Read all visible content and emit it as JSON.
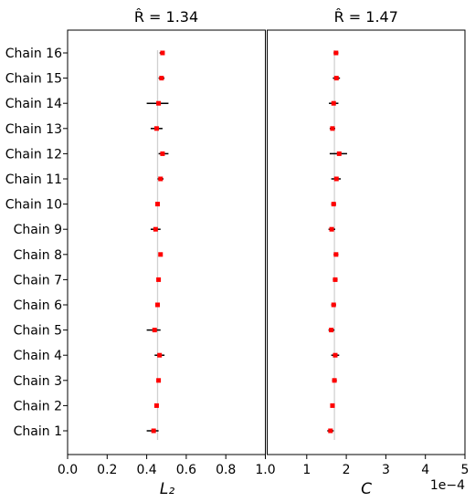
{
  "chart_data": [
    {
      "type": "forest",
      "title": "R̂ = 1.34",
      "xlabel": "L₂",
      "xlim": [
        0.0,
        1.0
      ],
      "xticks": [
        "0.0",
        "0.2",
        "0.4",
        "0.6",
        "0.8",
        "1.0"
      ],
      "tick_values": [
        0.0,
        0.2,
        0.4,
        0.6,
        0.8,
        1.0
      ],
      "categories": [
        "Chain 1",
        "Chain 2",
        "Chain 3",
        "Chain 4",
        "Chain 5",
        "Chain 6",
        "Chain 7",
        "Chain 8",
        "Chain 9",
        "Chain 10",
        "Chain 11",
        "Chain 12",
        "Chain 13",
        "Chain 14",
        "Chain 15",
        "Chain 16"
      ],
      "center": [
        0.435,
        0.45,
        0.46,
        0.465,
        0.44,
        0.455,
        0.46,
        0.47,
        0.445,
        0.455,
        0.47,
        0.48,
        0.45,
        0.46,
        0.475,
        0.48
      ],
      "interval": [
        [
          0.4,
          0.46
        ],
        [
          0.44,
          0.46
        ],
        [
          0.45,
          0.47
        ],
        [
          0.44,
          0.49
        ],
        [
          0.4,
          0.47
        ],
        [
          0.445,
          0.465
        ],
        [
          0.45,
          0.47
        ],
        [
          0.46,
          0.48
        ],
        [
          0.42,
          0.47
        ],
        [
          0.445,
          0.465
        ],
        [
          0.455,
          0.485
        ],
        [
          0.46,
          0.51
        ],
        [
          0.42,
          0.48
        ],
        [
          0.4,
          0.51
        ],
        [
          0.46,
          0.49
        ],
        [
          0.465,
          0.49
        ]
      ],
      "reference_line": 0.455,
      "marker_color": "#ff0000",
      "interval_color": "#000000",
      "reference_color": "#d0d0d0"
    },
    {
      "type": "forest",
      "title": "R̂ = 1.47",
      "xlabel": "C",
      "xlim": [
        0,
        5
      ],
      "xticks": [
        "1",
        "2",
        "3",
        "4",
        "5"
      ],
      "tick_values": [
        1,
        2,
        3,
        4,
        5
      ],
      "scale_note": "1e−4",
      "categories": [
        "Chain 1",
        "Chain 2",
        "Chain 3",
        "Chain 4",
        "Chain 5",
        "Chain 6",
        "Chain 7",
        "Chain 8",
        "Chain 9",
        "Chain 10",
        "Chain 11",
        "Chain 12",
        "Chain 13",
        "Chain 14",
        "Chain 15",
        "Chain 16"
      ],
      "center": [
        1.6,
        1.65,
        1.7,
        1.72,
        1.62,
        1.68,
        1.72,
        1.74,
        1.63,
        1.68,
        1.75,
        1.82,
        1.65,
        1.68,
        1.75,
        1.74
      ],
      "interval": [
        [
          1.52,
          1.68
        ],
        [
          1.6,
          1.7
        ],
        [
          1.64,
          1.76
        ],
        [
          1.62,
          1.82
        ],
        [
          1.55,
          1.7
        ],
        [
          1.62,
          1.74
        ],
        [
          1.66,
          1.78
        ],
        [
          1.68,
          1.8
        ],
        [
          1.55,
          1.72
        ],
        [
          1.62,
          1.74
        ],
        [
          1.62,
          1.86
        ],
        [
          1.58,
          2.02
        ],
        [
          1.58,
          1.72
        ],
        [
          1.56,
          1.8
        ],
        [
          1.66,
          1.84
        ],
        [
          1.68,
          1.8
        ]
      ],
      "reference_line": 1.7,
      "marker_color": "#ff0000",
      "interval_color": "#000000",
      "reference_color": "#d0d0d0"
    }
  ]
}
